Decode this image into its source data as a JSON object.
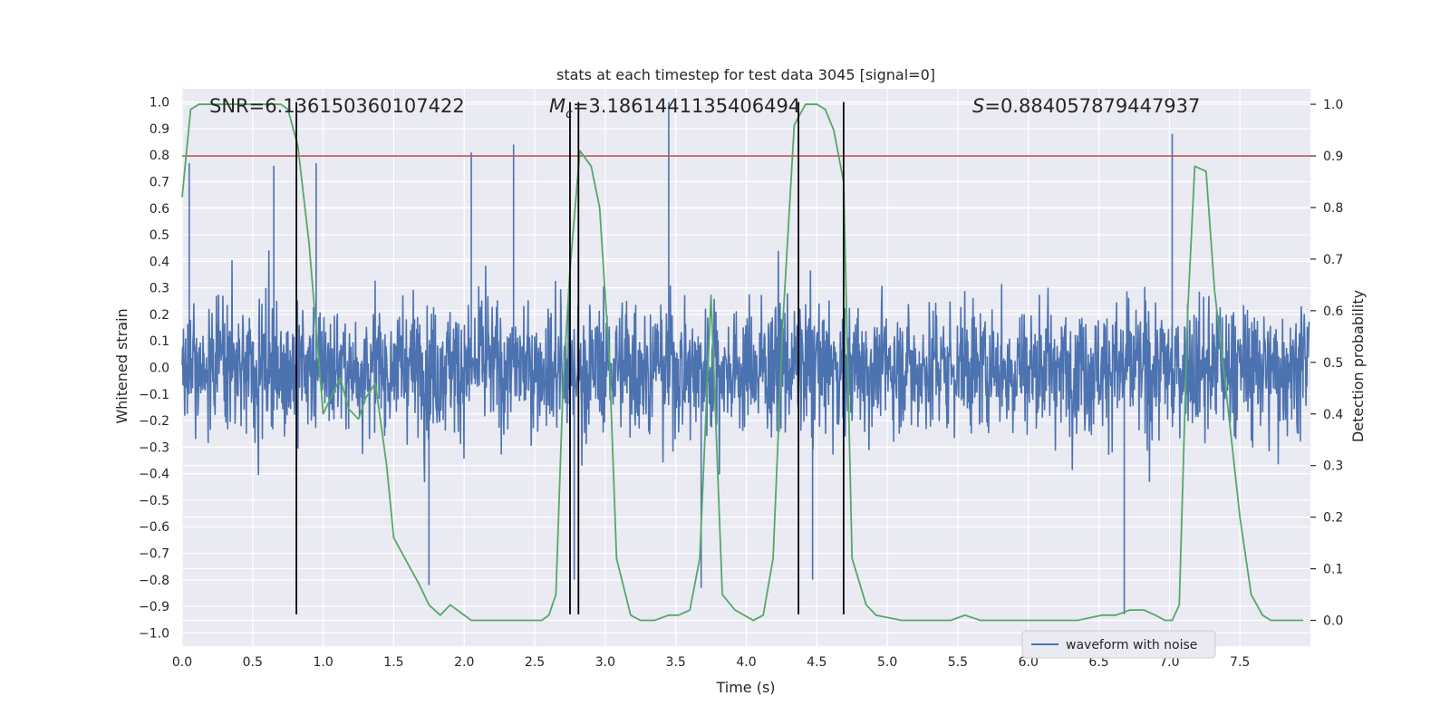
{
  "chart_data": {
    "type": "line",
    "title": "stats at each timestep for test data 3045 [signal=0]",
    "xlabel": "Time (s)",
    "ylabel_left": "Whitened strain",
    "ylabel_right": "Detection probability",
    "xlim": [
      0.0,
      8.0
    ],
    "ylim_left": [
      -1.05,
      1.05
    ],
    "ylim_right": [
      -0.05,
      1.03
    ],
    "x_ticks": [
      "0.0",
      "0.5",
      "1.0",
      "1.5",
      "2.0",
      "2.5",
      "3.0",
      "3.5",
      "4.0",
      "4.5",
      "5.0",
      "5.5",
      "6.0",
      "6.5",
      "7.0",
      "7.5"
    ],
    "y_ticks_left": [
      "1.0",
      "0.9",
      "0.8",
      "0.7",
      "0.6",
      "0.5",
      "0.4",
      "0.3",
      "0.2",
      "0.1",
      "0.0",
      "−0.1",
      "−0.2",
      "−0.3",
      "−0.4",
      "−0.5",
      "−0.6",
      "−0.7",
      "−0.8",
      "−0.9",
      "−1.0"
    ],
    "y_ticks_right": [
      "1.0",
      "0.9",
      "0.8",
      "0.7",
      "0.6",
      "0.5",
      "0.4",
      "0.3",
      "0.2",
      "0.1",
      "0.0"
    ],
    "grid": true,
    "legend": {
      "position": "lower-right",
      "entries": [
        "waveform with noise"
      ]
    },
    "annotations": {
      "snr": "SNR=6.136150360107422",
      "mc_symbol": "M",
      "mc_sub": "c",
      "mc_value": "=3.1861441135406494",
      "s_symbol": "S",
      "s_value": "=0.884057879447937"
    },
    "threshold": {
      "value_right_axis": 0.9,
      "color": "#c44e52"
    },
    "vertical_lines_x": [
      0.81,
      2.75,
      2.81,
      4.37,
      4.69
    ],
    "vertical_lines_y_range": [
      -0.93,
      1.0
    ],
    "series": [
      {
        "name": "waveform with noise",
        "axis": "left",
        "color": "#4c72b0",
        "kind": "noise",
        "envelope": {
          "typical_abs": 0.35,
          "max_abs": 1.0,
          "min": -0.93
        },
        "notable_peaks": [
          {
            "x": 0.05,
            "y": 0.77
          },
          {
            "x": 0.65,
            "y": 0.76
          },
          {
            "x": 0.95,
            "y": 0.77
          },
          {
            "x": 2.05,
            "y": 0.81
          },
          {
            "x": 2.35,
            "y": 0.84
          },
          {
            "x": 3.45,
            "y": 1.0
          },
          {
            "x": 7.02,
            "y": 0.88
          },
          {
            "x": 1.75,
            "y": -0.82
          },
          {
            "x": 2.78,
            "y": -0.8
          },
          {
            "x": 6.68,
            "y": -0.93
          },
          {
            "x": 3.68,
            "y": -0.83
          },
          {
            "x": 4.47,
            "y": -0.8
          }
        ]
      },
      {
        "name": "detection probability",
        "axis": "right",
        "color": "#55a868",
        "x": [
          0.0,
          0.06,
          0.12,
          0.5,
          0.7,
          0.75,
          0.82,
          0.9,
          1.0,
          1.12,
          1.18,
          1.25,
          1.3,
          1.37,
          1.45,
          1.5,
          1.6,
          1.68,
          1.75,
          1.83,
          1.9,
          1.95,
          2.05,
          2.12,
          2.3,
          2.45,
          2.55,
          2.6,
          2.65,
          2.7,
          2.75,
          2.82,
          2.9,
          2.96,
          3.03,
          3.08,
          3.18,
          3.25,
          3.35,
          3.45,
          3.52,
          3.6,
          3.67,
          3.75,
          3.83,
          3.92,
          4.05,
          4.12,
          4.19,
          4.26,
          4.34,
          4.42,
          4.5,
          4.56,
          4.62,
          4.69,
          4.75,
          4.85,
          4.92,
          5.1,
          5.3,
          5.45,
          5.55,
          5.66,
          5.8,
          6.0,
          6.35,
          6.52,
          6.62,
          6.72,
          6.82,
          6.9,
          6.97,
          7.02,
          7.07,
          7.13,
          7.18,
          7.26,
          7.32,
          7.4,
          7.5,
          7.58,
          7.66,
          7.72,
          7.95
        ],
        "y": [
          0.82,
          0.99,
          1.0,
          1.0,
          1.0,
          0.99,
          0.92,
          0.73,
          0.4,
          0.47,
          0.41,
          0.39,
          0.43,
          0.46,
          0.3,
          0.16,
          0.11,
          0.07,
          0.03,
          0.01,
          0.03,
          0.02,
          0.0,
          0.0,
          0.0,
          0.0,
          0.0,
          0.01,
          0.05,
          0.45,
          0.68,
          0.91,
          0.88,
          0.8,
          0.5,
          0.12,
          0.01,
          0.0,
          0.0,
          0.01,
          0.01,
          0.02,
          0.12,
          0.63,
          0.05,
          0.02,
          0.0,
          0.01,
          0.12,
          0.58,
          0.96,
          1.0,
          1.0,
          0.99,
          0.95,
          0.85,
          0.12,
          0.03,
          0.01,
          0.0,
          0.0,
          0.0,
          0.01,
          0.0,
          0.0,
          0.0,
          0.0,
          0.01,
          0.01,
          0.02,
          0.02,
          0.01,
          0.0,
          0.0,
          0.03,
          0.6,
          0.88,
          0.87,
          0.64,
          0.45,
          0.2,
          0.05,
          0.01,
          0.0,
          0.0
        ]
      }
    ]
  }
}
